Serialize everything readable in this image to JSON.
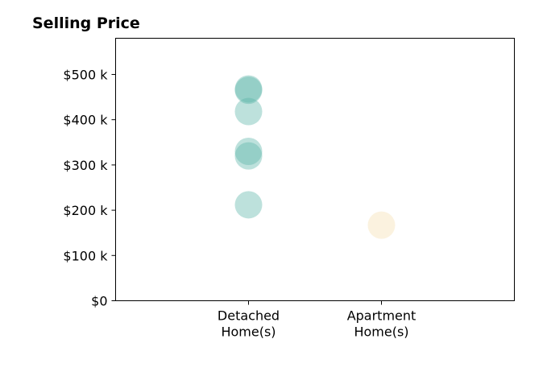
{
  "chart_data": {
    "type": "scatter",
    "title": "Selling Price",
    "xlabel": "",
    "ylabel": "",
    "categories": [
      "Detached\nHome(s)",
      "Apartment\nHome(s)"
    ],
    "xlim": [
      0,
      3
    ],
    "ylim": [
      0,
      580000
    ],
    "yticks": [
      0,
      100000,
      200000,
      300000,
      400000,
      500000
    ],
    "ytick_labels": [
      "$0",
      "$100 k",
      "$200 k",
      "$300 k",
      "$400 k",
      "$500 k"
    ],
    "grid": false,
    "series": [
      {
        "category": "Detached\nHome(s)",
        "color": "#5ab4a8",
        "values": [
          212000,
          320000,
          330000,
          418000,
          465000,
          468000
        ]
      },
      {
        "category": "Apartment\nHome(s)",
        "color": "#f5dfb0",
        "values": [
          167000
        ]
      }
    ]
  }
}
